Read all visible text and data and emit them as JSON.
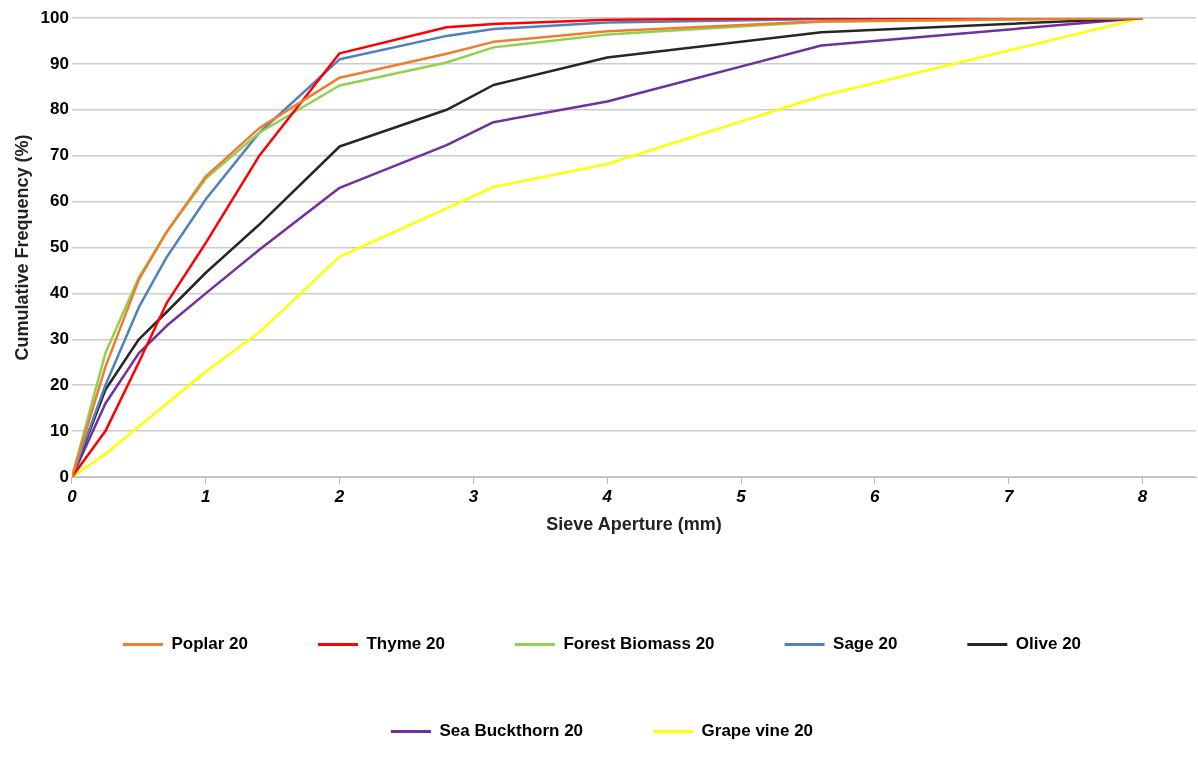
{
  "chart_data": {
    "type": "line",
    "xlabel": "Sieve Aperture (mm)",
    "ylabel": "Cumulative Frequency (%)",
    "x": [
      0,
      0.25,
      0.5,
      0.71,
      1,
      1.4,
      2,
      2.8,
      3.15,
      4,
      5.6,
      8
    ],
    "xlim": [
      0,
      8.4
    ],
    "xticks": [
      0,
      1,
      2,
      3,
      4,
      5,
      6,
      7,
      8
    ],
    "ylim": [
      0,
      100
    ],
    "yticks": [
      0,
      10,
      20,
      30,
      40,
      50,
      60,
      70,
      80,
      90,
      100
    ],
    "grid": "y",
    "legend": "bottom",
    "marker": "none",
    "line_style": "solid",
    "series": [
      {
        "name": "Poplar 20",
        "color": "#ed7d31",
        "values": [
          0,
          24,
          43,
          53.5,
          65.5,
          76,
          87,
          92.2,
          94.8,
          97.1,
          99.3,
          100
        ]
      },
      {
        "name": "Thyme 20",
        "color": "#ff0000",
        "values": [
          0,
          10,
          25,
          38,
          51,
          70,
          92.3,
          98,
          98.7,
          99.6,
          100,
          100
        ]
      },
      {
        "name": "Forest Biomass 20",
        "color": "#92d050",
        "values": [
          0,
          27,
          43.5,
          53.5,
          65,
          75,
          85.3,
          90.3,
          93.6,
          96.4,
          99.2,
          100
        ]
      },
      {
        "name": "Sage 20",
        "color": "#4f81bd",
        "values": [
          0,
          20,
          37,
          48,
          60.5,
          75,
          91,
          96.1,
          97.6,
          99,
          99.8,
          100
        ]
      },
      {
        "name": "Olive 20",
        "color": "#262626",
        "values": [
          0,
          19,
          30,
          36,
          44.5,
          55,
          72,
          80,
          85.4,
          91.4,
          96.9,
          100
        ]
      },
      {
        "name": "Sea Buckthorn 20",
        "color": "#7030a0",
        "values": [
          0,
          16,
          27,
          33,
          40,
          49.5,
          63,
          72.3,
          77.3,
          81.8,
          94,
          100
        ]
      },
      {
        "name": "Grape vine 20",
        "color": "#ffff00",
        "values": [
          0,
          5,
          11,
          16,
          23,
          31.5,
          48,
          58.5,
          63.2,
          68.2,
          83,
          100
        ]
      }
    ]
  }
}
